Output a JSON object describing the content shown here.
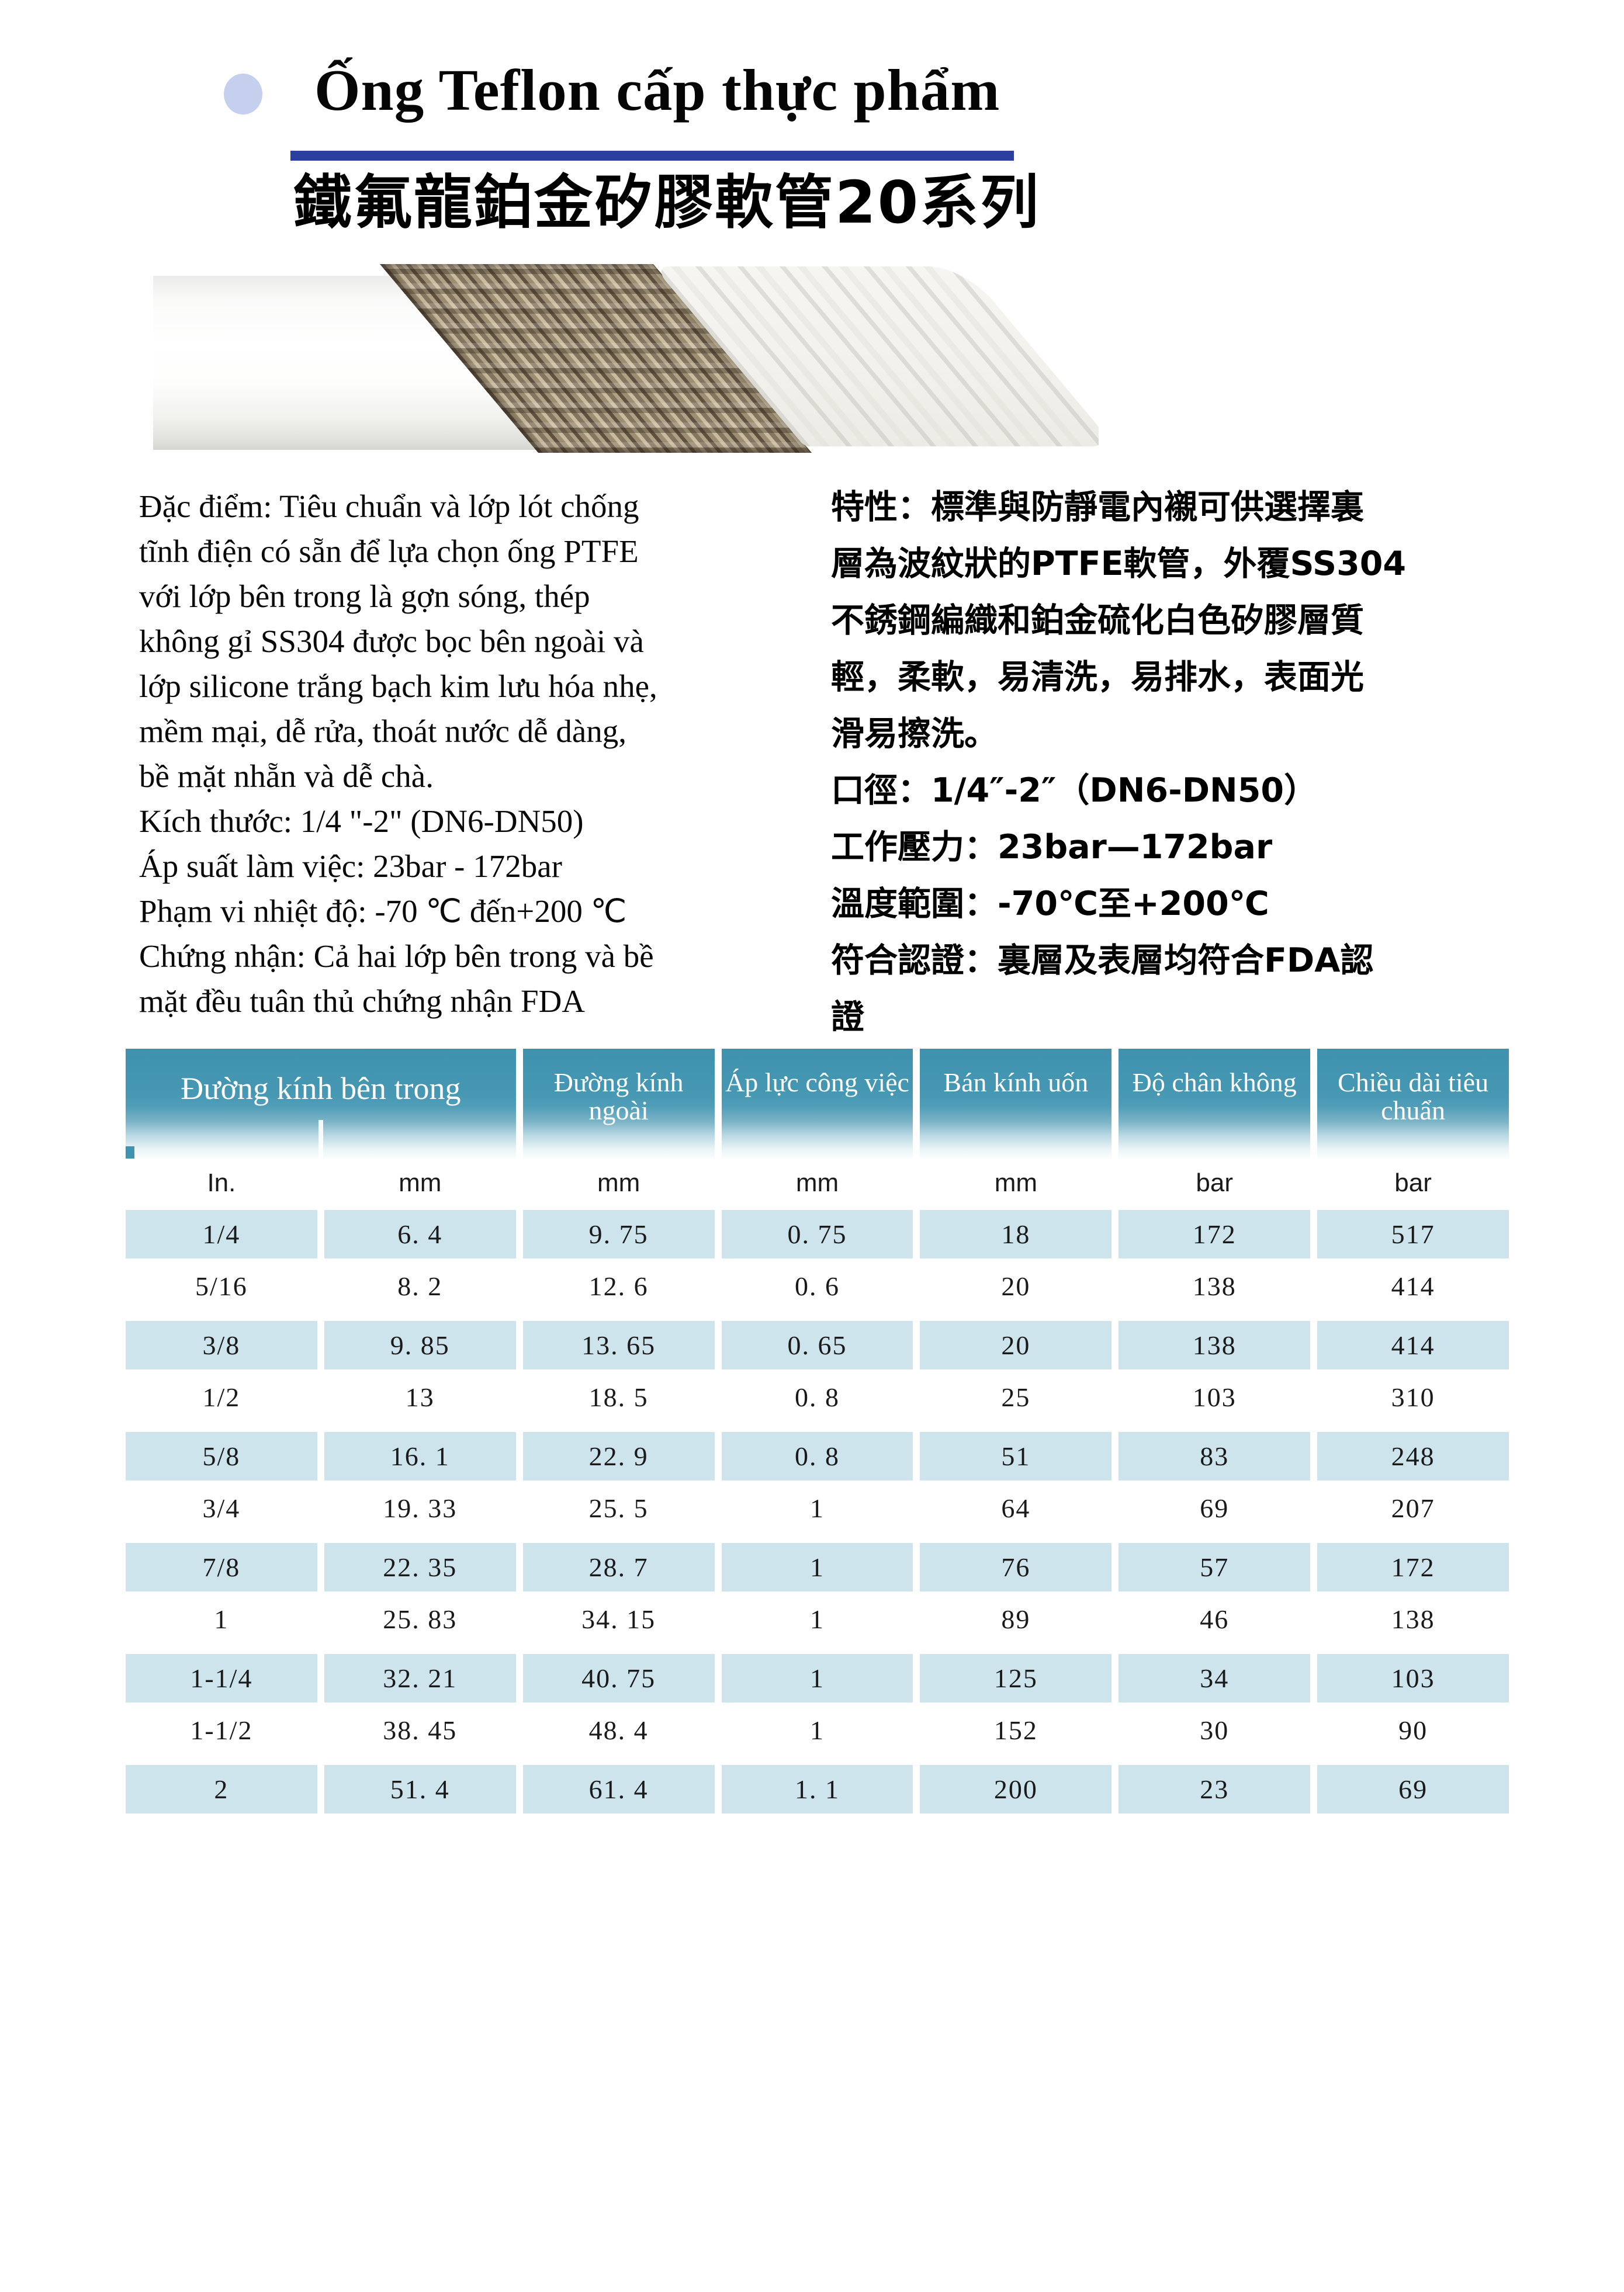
{
  "header": {
    "title_vi": "Ống Teflon cấp thực phẩm",
    "title_zh": "鐵氟龍鉑金矽膠軟管20系列"
  },
  "features": {
    "vi": "Đặc điểm: Tiêu chuẩn và lớp lót chống\ntĩnh điện có sẵn để lựa chọn ống PTFE\nvới lớp bên trong là gợn sóng, thép\nkhông gỉ SS304 được bọc bên ngoài và\nlớp silicone trắng bạch kim lưu hóa nhẹ,\nmềm mại, dễ rửa, thoát nước dễ dàng,\nbề mặt nhẵn và dễ chà.\nKích thước: 1/4 \"-2\" (DN6-DN50)\nÁp suất làm việc: 23bar - 172bar\nPhạm vi nhiệt độ: -70 ℃ đến+200 ℃\nChứng nhận: Cả hai lớp bên trong và bề\nmặt đều tuân thủ chứng nhận FDA",
    "zh": "特性：標準與防靜電內襯可供選擇裏\n層為波紋狀的PTFE軟管，外覆SS304\n不銹鋼編織和鉑金硫化白色矽膠層質\n輕，柔軟，易清洗，易排水，表面光\n滑易擦洗。\n口徑：1/4″-2″（DN6-DN50）\n工作壓力：23bar—172bar\n溫度範圍：-70℃至+200℃\n符合認證：裏層及表層均符合FDA認\n證"
  },
  "table": {
    "headers": [
      "Đường kính bên trong",
      "Đường kính ngoài",
      "Áp lực công việc",
      "Bán kính uốn",
      "Độ chân không",
      "Chiều dài tiêu chuẩn"
    ],
    "units": [
      "In.",
      "mm",
      "mm",
      "mm",
      "mm",
      "bar",
      "bar"
    ],
    "rows": [
      [
        "1/4",
        "6. 4",
        "9. 75",
        "0. 75",
        "18",
        "172",
        "517"
      ],
      [
        "5/16",
        "8. 2",
        "12. 6",
        "0. 6",
        "20",
        "138",
        "414"
      ],
      [
        "3/8",
        "9. 85",
        "13. 65",
        "0. 65",
        "20",
        "138",
        "414"
      ],
      [
        "1/2",
        "13",
        "18. 5",
        "0. 8",
        "25",
        "103",
        "310"
      ],
      [
        "5/8",
        "16. 1",
        "22. 9",
        "0. 8",
        "51",
        "83",
        "248"
      ],
      [
        "3/4",
        "19. 33",
        "25. 5",
        "1",
        "64",
        "69",
        "207"
      ],
      [
        "7/8",
        "22. 35",
        "28. 7",
        "1",
        "76",
        "57",
        "172"
      ],
      [
        "1",
        "25. 83",
        "34. 15",
        "1",
        "89",
        "46",
        "138"
      ],
      [
        "1-1/4",
        "32. 21",
        "40. 75",
        "1",
        "125",
        "34",
        "103"
      ],
      [
        "1-1/2",
        "38. 45",
        "48. 4",
        "1",
        "152",
        "30",
        "90"
      ],
      [
        "2",
        "51. 4",
        "61. 4",
        "1. 1",
        "200",
        "23",
        "69"
      ]
    ]
  },
  "colors": {
    "accent_underline": "#2b3f9e",
    "bullet": "#c5cfee",
    "table_header_teal": "#4597b2",
    "row_highlight_blue": "#cde4ed",
    "corner_marker": "#3e93b0"
  }
}
